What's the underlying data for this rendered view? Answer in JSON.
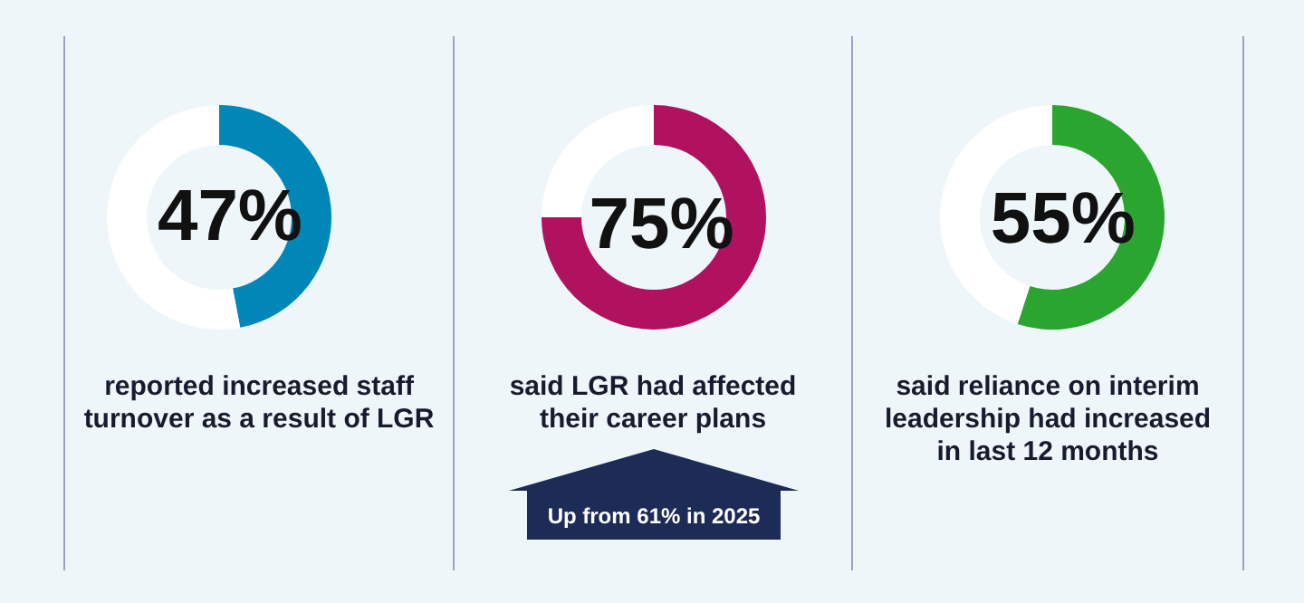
{
  "chart_data": [
    {
      "type": "donut",
      "title": "reported increased staff turnover as a result of LGR",
      "categories": [
        null,
        null
      ],
      "values": [
        47,
        53
      ],
      "colors": [
        "#0087b8",
        "#ffffff"
      ],
      "value_labels": [
        "47%",
        null
      ]
    },
    {
      "type": "donut",
      "title": "said LGR had affected their career plans",
      "categories": [
        null,
        null
      ],
      "values": [
        75,
        25
      ],
      "colors": [
        "#b0125f",
        "#ffffff"
      ],
      "value_labels": [
        "75%",
        null
      ],
      "annotations": [
        "Up from 61% in 2025"
      ]
    },
    {
      "type": "donut",
      "title": "said reliance on interim leadership had increased in last 12 months",
      "categories": [
        null,
        null
      ],
      "values": [
        55,
        45
      ],
      "colors": [
        "#2aa52f",
        "#ffffff"
      ],
      "value_labels": [
        "55%",
        null
      ]
    }
  ]
}
